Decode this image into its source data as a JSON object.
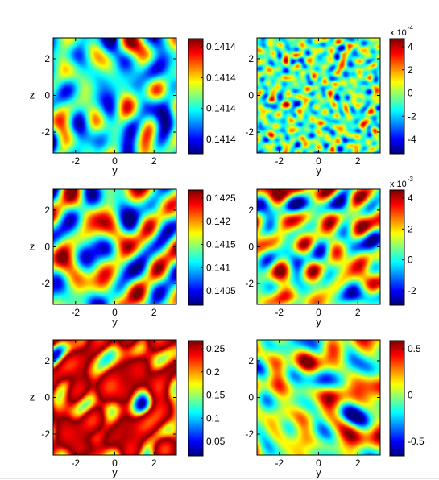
{
  "chart_data": [
    {
      "type": "heatmap",
      "panel": "row1-left",
      "xlabel": "y",
      "ylabel": "z",
      "xticks": [
        -2,
        0,
        2
      ],
      "yticks": [
        -2,
        0,
        2
      ],
      "xlim": [
        -3.14,
        3.14
      ],
      "ylim": [
        -3.14,
        3.14
      ],
      "colormap": "jet",
      "pattern": "smooth-cells",
      "seed": 11,
      "smooth": 2.2,
      "colorbar": {
        "ticks": [
          "0.1414",
          "0.1414",
          "0.1414",
          "0.1414"
        ],
        "multiplier": ""
      }
    },
    {
      "type": "heatmap",
      "panel": "row1-right",
      "xlabel": "y",
      "ylabel": "",
      "xticks": [
        -2,
        0,
        2
      ],
      "yticks": [
        -2,
        0,
        2
      ],
      "xlim": [
        -3.14,
        3.14
      ],
      "ylim": [
        -3.14,
        3.14
      ],
      "colormap": "jet",
      "pattern": "noisy",
      "seed": 23,
      "smooth": 0.5,
      "colorbar": {
        "ticks": [
          "4",
          "2",
          "0",
          "-2",
          "-4"
        ],
        "multiplier": "x 10",
        "exponent": "-4"
      }
    },
    {
      "type": "heatmap",
      "panel": "row2-left",
      "xlabel": "y",
      "ylabel": "z",
      "xticks": [
        -2,
        0,
        2
      ],
      "yticks": [
        -2,
        0,
        2
      ],
      "xlim": [
        -3.14,
        3.14
      ],
      "ylim": [
        -3.14,
        3.14
      ],
      "colormap": "jet",
      "pattern": "cells",
      "seed": 37,
      "smooth": 2.5,
      "colorbar": {
        "ticks": [
          "0.1425",
          "0.142",
          "0.1415",
          "0.141",
          "0.1405"
        ],
        "multiplier": ""
      }
    },
    {
      "type": "heatmap",
      "panel": "row2-right",
      "xlabel": "y",
      "ylabel": "",
      "xticks": [
        -2,
        0,
        2
      ],
      "yticks": [
        -2,
        0,
        2
      ],
      "xlim": [
        -3.14,
        3.14
      ],
      "ylim": [
        -3.14,
        3.14
      ],
      "colormap": "jet",
      "pattern": "cells",
      "seed": 41,
      "smooth": 2.3,
      "colorbar": {
        "ticks": [
          "4",
          "2",
          "0",
          "-2"
        ],
        "multiplier": "x 10",
        "exponent": "-3"
      }
    },
    {
      "type": "heatmap",
      "panel": "row3-left",
      "xlabel": "y",
      "ylabel": "z",
      "xticks": [
        -2,
        0,
        2
      ],
      "yticks": [
        -2,
        0,
        2
      ],
      "xlim": [
        -3.14,
        3.14
      ],
      "ylim": [
        -3.14,
        3.14
      ],
      "colormap": "jet",
      "pattern": "filaments",
      "seed": 53,
      "smooth": 2.6,
      "colorbar": {
        "ticks": [
          "0.25",
          "0.2",
          "0.15",
          "0.1",
          "0.05"
        ],
        "multiplier": ""
      }
    },
    {
      "type": "heatmap",
      "panel": "row3-right",
      "xlabel": "y",
      "ylabel": "",
      "xticks": [
        -2,
        0,
        2
      ],
      "yticks": [
        -2,
        0,
        2
      ],
      "xlim": [
        -3.14,
        3.14
      ],
      "ylim": [
        -3.14,
        3.14
      ],
      "colormap": "jet",
      "pattern": "cells",
      "seed": 67,
      "smooth": 2.1,
      "colorbar": {
        "ticks": [
          "0.5",
          "0",
          "-0.5"
        ],
        "multiplier": ""
      }
    }
  ]
}
